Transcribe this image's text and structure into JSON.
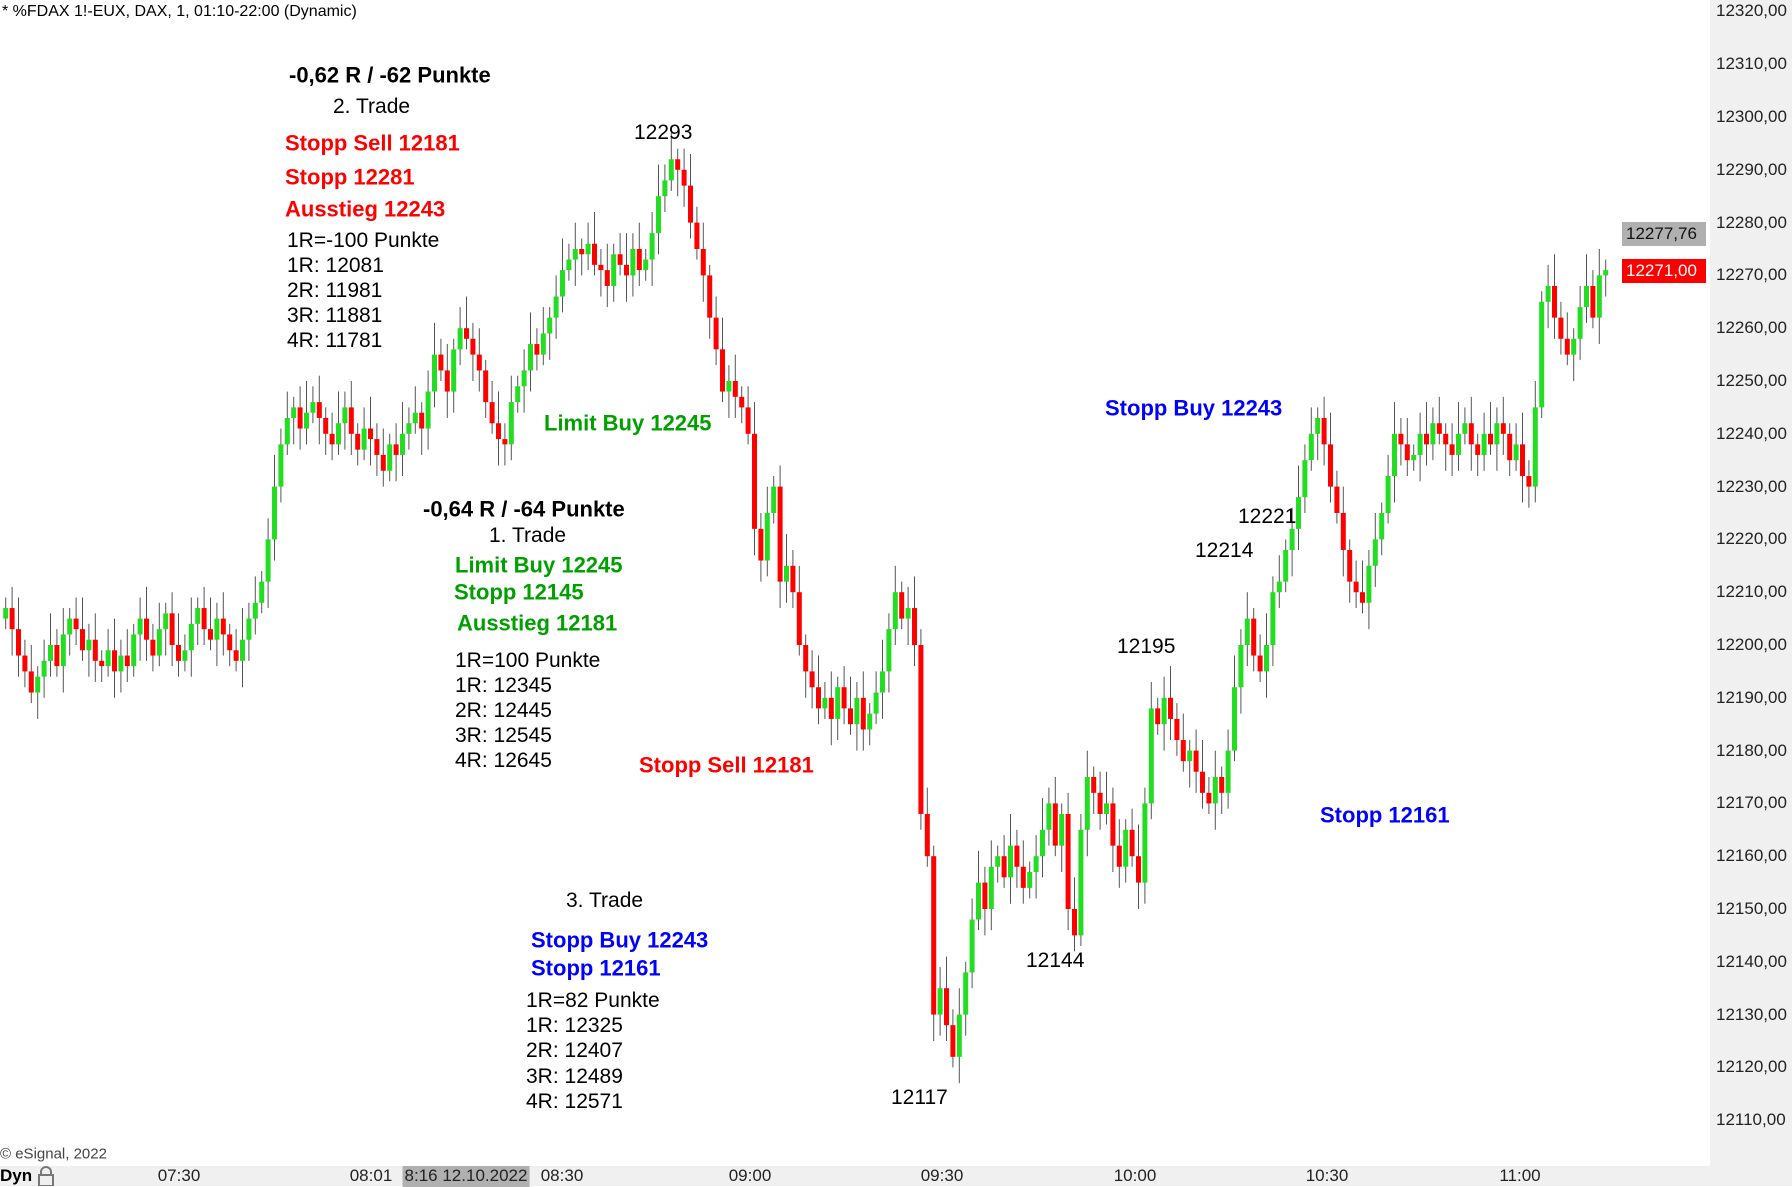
{
  "header": {
    "title": "* %FDAX 1!-EUX, DAX, 1, 01:10-22:00 (Dynamic)",
    "copyright": "© eSignal, 2022"
  },
  "colors": {
    "up": "#22dd22",
    "down": "#ff0000",
    "wick": "#555555",
    "last_price_bg": "#ff0000",
    "cursor_bg": "#b0b0b0"
  },
  "price_axis": {
    "labels": [
      "12320,00",
      "12310,00",
      "12300,00",
      "12290,00",
      "12280,00",
      "12270,00",
      "12260,00",
      "12250,00",
      "12240,00",
      "12230,00",
      "12220,00",
      "12210,00",
      "12200,00",
      "12190,00",
      "12180,00",
      "12170,00",
      "12160,00",
      "12150,00",
      "12140,00",
      "12130,00",
      "12120,00",
      "12110,00"
    ],
    "cursor_price": "12277,76",
    "last_price": "12271,00"
  },
  "time_axis": {
    "mode": "Dyn",
    "labels": [
      "07:30",
      "08:01",
      "08:30",
      "09:00",
      "09:30",
      "10:00",
      "10:30",
      "11:00"
    ],
    "cursor_time": "8:16 12.10.2022"
  },
  "annotations": {
    "t2_result": "-0,62 R / -62 Punkte",
    "t2_title": "2. Trade",
    "t2_entry": "Stopp Sell 12181",
    "t2_stop": "Stopp 12281",
    "t2_exit": "Ausstieg 12243",
    "t2_r": "1R=-100 Punkte",
    "t2_1r": "1R: 12081",
    "t2_2r": "2R: 11981",
    "t2_3r": "3R: 11881",
    "t2_4r": "4R: 11781",
    "high_12293": "12293",
    "limit_buy_chart": "Limit Buy 12245",
    "t1_result": "-0,64 R / -64 Punkte",
    "t1_title": "1. Trade",
    "t1_entry": "Limit Buy 12245",
    "t1_stop": "Stopp 12145",
    "t1_exit": "Ausstieg 12181",
    "t1_r": "1R=100 Punkte",
    "t1_1r": "1R: 12345",
    "t1_2r": "2R: 12445",
    "t1_3r": "3R: 12545",
    "t1_4r": "4R: 12645",
    "stopp_sell_chart": "Stopp Sell 12181",
    "t3_title": "3. Trade",
    "t3_entry": "Stopp Buy 12243",
    "t3_stop": "Stopp 12161",
    "t3_r": "1R=82 Punkte",
    "t3_1r": "1R: 12325",
    "t3_2r": "2R: 12407",
    "t3_3r": "3R: 12489",
    "t3_4r": "4R: 12571",
    "low_12117": "12117",
    "low_12144": "12144",
    "lvl_12195": "12195",
    "lvl_12214": "12214",
    "lvl_12221": "12221",
    "stopp_buy_chart": "Stopp Buy 12243",
    "stopp_chart": "Stopp 12161"
  },
  "chart_data": {
    "type": "candlestick",
    "interval": "1 minute",
    "first_open": 12205,
    "ylim": [
      12105,
      12322
    ],
    "closes": [
      12207,
      12203,
      12198,
      12195,
      12191,
      12194,
      12197,
      12200,
      12196,
      12202,
      12205,
      12203,
      12199,
      12201,
      12197,
      12196,
      12199,
      12195,
      12198,
      12196,
      12202,
      12205,
      12201,
      12198,
      12203,
      12206,
      12200,
      12197,
      12199,
      12204,
      12207,
      12203,
      12201,
      12205,
      12202,
      12199,
      12197,
      12201,
      12205,
      12208,
      12212,
      12220,
      12230,
      12238,
      12243,
      12245,
      12241,
      12244,
      12246,
      12243,
      12240,
      12238,
      12242,
      12245,
      12240,
      12237,
      12241,
      12239,
      12236,
      12233,
      12238,
      12236,
      12240,
      12242,
      12244,
      12241,
      12248,
      12255,
      12252,
      12248,
      12256,
      12260,
      12258,
      12255,
      12252,
      12246,
      12242,
      12239,
      12238,
      12246,
      12249,
      12252,
      12257,
      12255,
      12259,
      12262,
      12266,
      12271,
      12273,
      12275,
      12274,
      12276,
      12272,
      12271,
      12268,
      12274,
      12272,
      12270,
      12275,
      12271,
      12273,
      12278,
      12285,
      12288,
      12292,
      12290,
      12287,
      12280,
      12275,
      12270,
      12262,
      12256,
      12248,
      12250,
      12247,
      12245,
      12240,
      12222,
      12216,
      12225,
      12230,
      12212,
      12215,
      12210,
      12200,
      12195,
      12192,
      12188,
      12190,
      12186,
      12192,
      12188,
      12185,
      12190,
      12184,
      12187,
      12191,
      12195,
      12203,
      12210,
      12205,
      12207,
      12200,
      12168,
      12160,
      12130,
      12135,
      12128,
      12122,
      12130,
      12138,
      12148,
      12155,
      12150,
      12158,
      12160,
      12156,
      12162,
      12158,
      12154,
      12157,
      12160,
      12165,
      12170,
      12162,
      12168,
      12150,
      12145,
      12165,
      12175,
      12172,
      12168,
      12170,
      12162,
      12158,
      12165,
      12160,
      12155,
      12170,
      12188,
      12185,
      12190,
      12186,
      12182,
      12178,
      12180,
      12176,
      12172,
      12170,
      12175,
      12172,
      12180,
      12192,
      12200,
      12205,
      12198,
      12195,
      12200,
      12210,
      12212,
      12218,
      12222,
      12228,
      12235,
      12240,
      12243,
      12238,
      12230,
      12225,
      12218,
      12212,
      12210,
      12208,
      12215,
      12220,
      12225,
      12232,
      12240,
      12238,
      12235,
      12236,
      12240,
      12238,
      12242,
      12240,
      12238,
      12236,
      12240,
      12242,
      12238,
      12236,
      12240,
      12238,
      12242,
      12240,
      12235,
      12238,
      12232,
      12230,
      12245,
      12265,
      12268,
      12262,
      12258,
      12255,
      12258,
      12264,
      12268,
      12262,
      12270,
      12271
    ]
  }
}
